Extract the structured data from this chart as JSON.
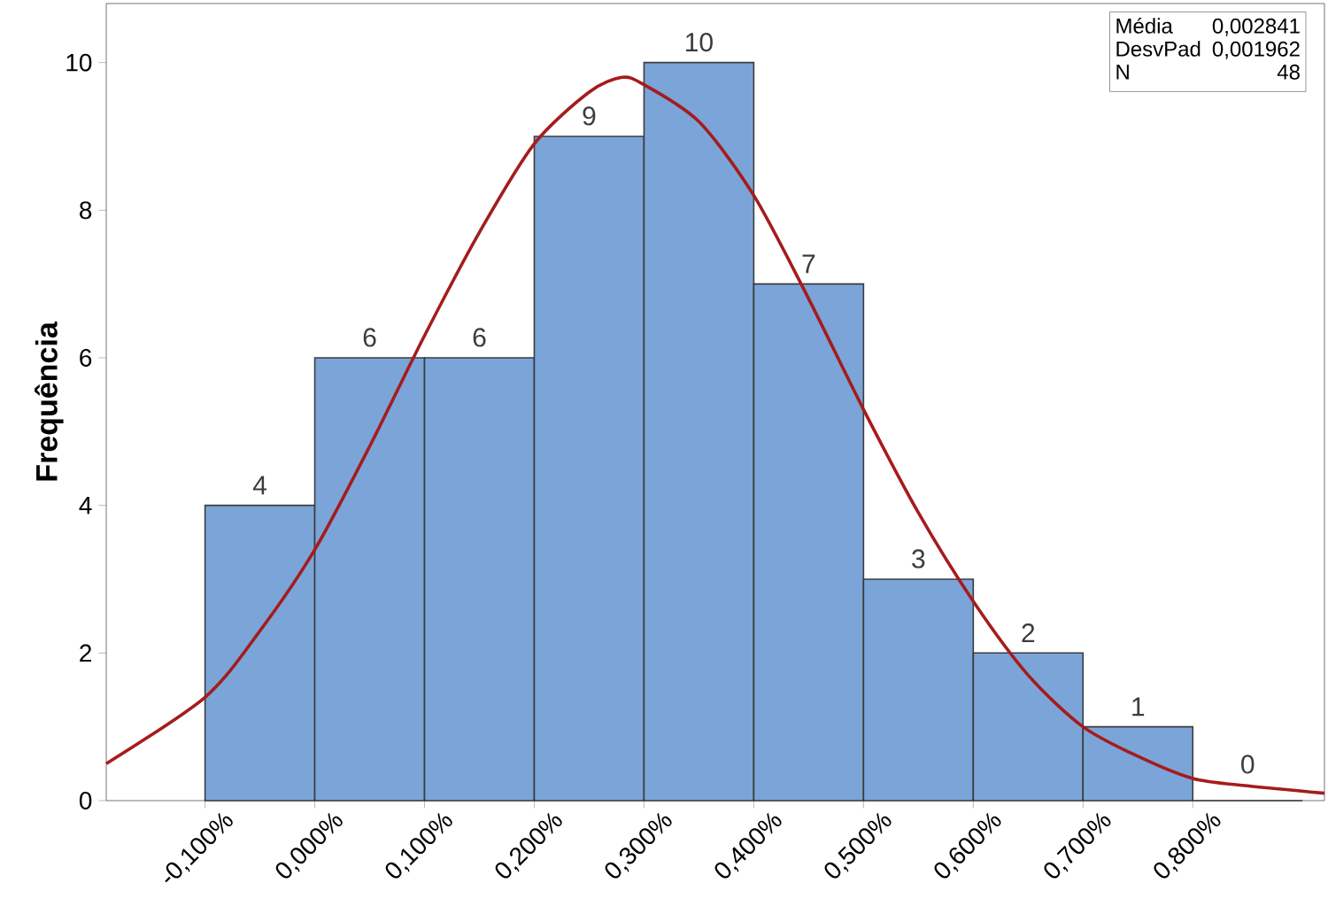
{
  "chart_data": {
    "type": "histogram",
    "ylabel": "Frequência",
    "bins": [
      -0.1,
      0.0,
      0.1,
      0.2,
      0.3,
      0.4,
      0.5,
      0.6,
      0.7,
      0.8,
      0.9
    ],
    "values": [
      4,
      6,
      6,
      9,
      10,
      7,
      3,
      2,
      1,
      0
    ],
    "color": "#7ba5d9",
    "value_labels": [
      "4",
      "6",
      "6",
      "9",
      "10",
      "7",
      "3",
      "2",
      "1",
      "0"
    ],
    "xlim": [
      -0.19,
      0.92
    ],
    "ylim": [
      0,
      10.8
    ],
    "xticks": [
      {
        "value": -0.1,
        "label": "-0,100%"
      },
      {
        "value": 0.0,
        "label": "0,000%"
      },
      {
        "value": 0.1,
        "label": "0,100%"
      },
      {
        "value": 0.2,
        "label": "0,200%"
      },
      {
        "value": 0.3,
        "label": "0,300%"
      },
      {
        "value": 0.4,
        "label": "0,400%"
      },
      {
        "value": 0.5,
        "label": "0,500%"
      },
      {
        "value": 0.6,
        "label": "0,600%"
      },
      {
        "value": 0.7,
        "label": "0,700%"
      },
      {
        "value": 0.8,
        "label": "0,800%"
      }
    ],
    "yticks": [
      0,
      2,
      4,
      6,
      8,
      10
    ],
    "grid": false,
    "series": [
      {
        "type": "line",
        "color": "#a51c1c",
        "x": [
          -0.19,
          -0.1,
          -0.05,
          0.0,
          0.05,
          0.1,
          0.15,
          0.2,
          0.25,
          0.28,
          0.3,
          0.35,
          0.4,
          0.45,
          0.5,
          0.55,
          0.6,
          0.65,
          0.7,
          0.75,
          0.8,
          0.85,
          0.92
        ],
        "values": [
          0.5,
          1.4,
          2.3,
          3.4,
          4.8,
          6.3,
          7.7,
          8.9,
          9.6,
          9.8,
          9.7,
          9.2,
          8.2,
          6.8,
          5.3,
          3.9,
          2.7,
          1.7,
          1.0,
          0.6,
          0.3,
          0.2,
          0.1
        ]
      }
    ],
    "annotations": [
      "Média",
      "0,002841",
      "DesvPad",
      "0,001962",
      "N",
      "48"
    ]
  }
}
